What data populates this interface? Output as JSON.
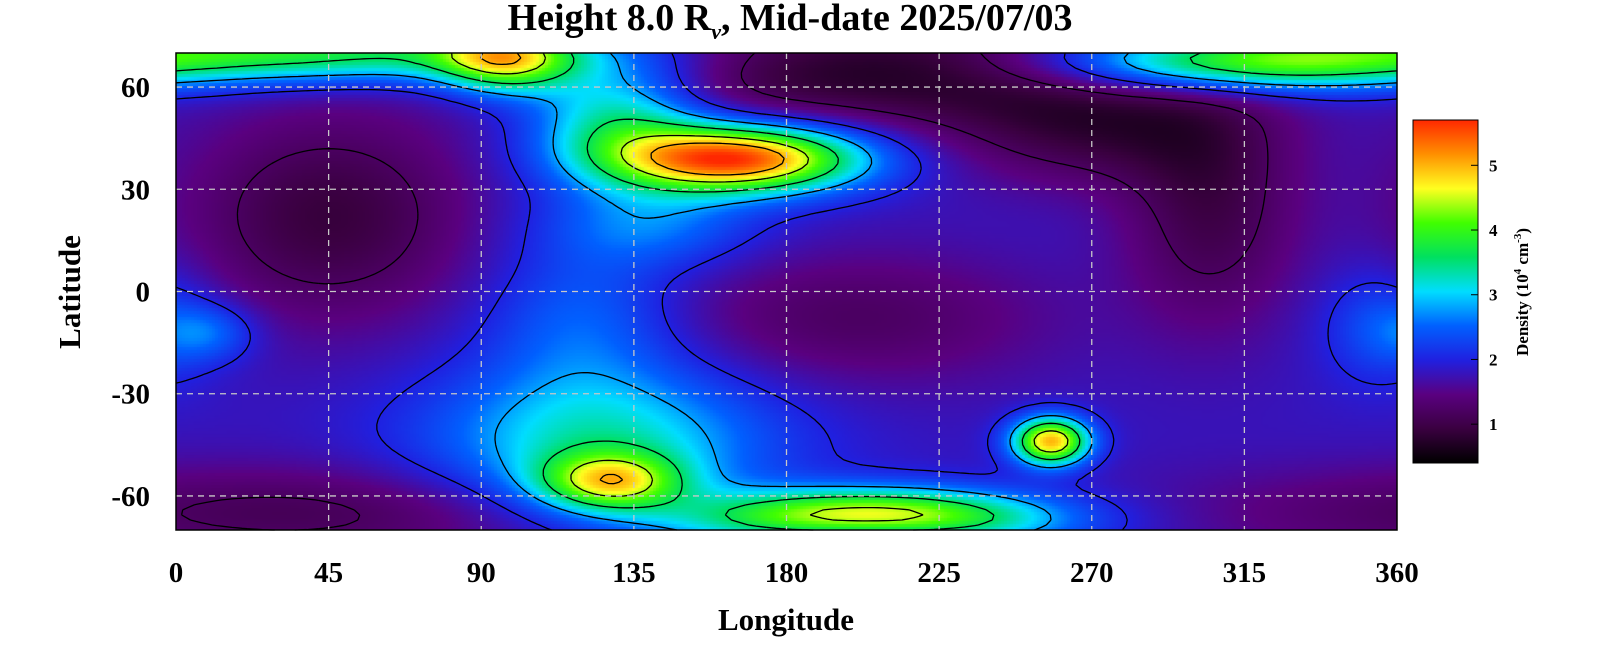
{
  "chart_data": {
    "type": "heatmap",
    "title": {
      "prefix": "Height 8.0 R",
      "subscript": "v",
      "suffix": ", Mid-date 2025/07/03"
    },
    "xlabel": "Longitude",
    "ylabel": "Latitude",
    "xlim": [
      0,
      360
    ],
    "ylim": [
      -70,
      70
    ],
    "xticks": [
      0,
      45,
      90,
      135,
      180,
      225,
      270,
      315,
      360
    ],
    "yticks": [
      60,
      30,
      0,
      -30,
      -60
    ],
    "ytick_labels": [
      "60",
      "30",
      "0",
      "-30",
      "-60"
    ],
    "grid": true,
    "colorbar": {
      "label_prefix": "Density (10",
      "label_exp": "4",
      "label_unit": " cm",
      "label_unit_exp": "-3",
      "label_suffix": ")",
      "range": [
        0.4,
        5.7
      ],
      "ticks": [
        1,
        2,
        3,
        4,
        5
      ],
      "tick_labels": [
        "1",
        "2",
        "3",
        "4",
        "5"
      ],
      "colormap": [
        "#000000",
        "#3a0040",
        "#5a0080",
        "#2020e0",
        "#0060ff",
        "#00ddff",
        "#00e060",
        "#40ff00",
        "#ffff20",
        "#ff9000",
        "#ff2800"
      ],
      "placement": "right"
    },
    "background_level": 1.8,
    "features": [
      {
        "lon": 45,
        "lat": 22,
        "slon": 30,
        "slat": 22,
        "value": -0.9
      },
      {
        "lon": 205,
        "lat": 65,
        "slon": 55,
        "slat": 12,
        "value": -1.1
      },
      {
        "lon": 270,
        "lat": 48,
        "slon": 30,
        "slat": 12,
        "value": -0.8
      },
      {
        "lon": 305,
        "lat": 25,
        "slon": 18,
        "slat": 25,
        "value": -0.8
      },
      {
        "lon": 200,
        "lat": -8,
        "slon": 40,
        "slat": 14,
        "value": -0.6
      },
      {
        "lon": 40,
        "lat": -65,
        "slon": 70,
        "slat": 10,
        "value": -0.7
      },
      {
        "lon": 205,
        "lat": -72,
        "slon": 25,
        "slat": 6,
        "value": -1.6
      },
      {
        "lon": 40,
        "lat": 70,
        "slon": 60,
        "slat": 6,
        "value": 2.0
      },
      {
        "lon": 97,
        "lat": 68,
        "slon": 14,
        "slat": 7,
        "value": 2.2
      },
      {
        "lon": 165,
        "lat": 39,
        "slon": 26,
        "slat": 7,
        "value": 3.8
      },
      {
        "lon": 130,
        "lat": 52,
        "slon": 18,
        "slat": 12,
        "value": 1.6
      },
      {
        "lon": 140,
        "lat": 20,
        "slon": 22,
        "slat": 9,
        "value": 0.8
      },
      {
        "lon": 125,
        "lat": -45,
        "slon": 35,
        "slat": 16,
        "value": 1.5
      },
      {
        "lon": 128,
        "lat": -56,
        "slon": 15,
        "slat": 6,
        "value": 2.2
      },
      {
        "lon": 205,
        "lat": -67,
        "slon": 35,
        "slat": 6,
        "value": 3.8
      },
      {
        "lon": 258,
        "lat": -44,
        "slon": 8,
        "slat": 5,
        "value": 3.2
      },
      {
        "lon": 310,
        "lat": 67,
        "slon": 38,
        "slat": 6,
        "value": 2.0
      },
      {
        "lon": 120,
        "lat": -8,
        "slon": 20,
        "slat": 16,
        "value": 0.7
      },
      {
        "lon": 10,
        "lat": -12,
        "slon": 10,
        "slat": 6,
        "value": 0.7
      },
      {
        "lon": 355,
        "lat": -10,
        "slon": 12,
        "slat": 12,
        "value": 0.6
      }
    ],
    "contour_levels": [
      1.2,
      2.0,
      2.8,
      3.6,
      4.4,
      5.0
    ]
  }
}
